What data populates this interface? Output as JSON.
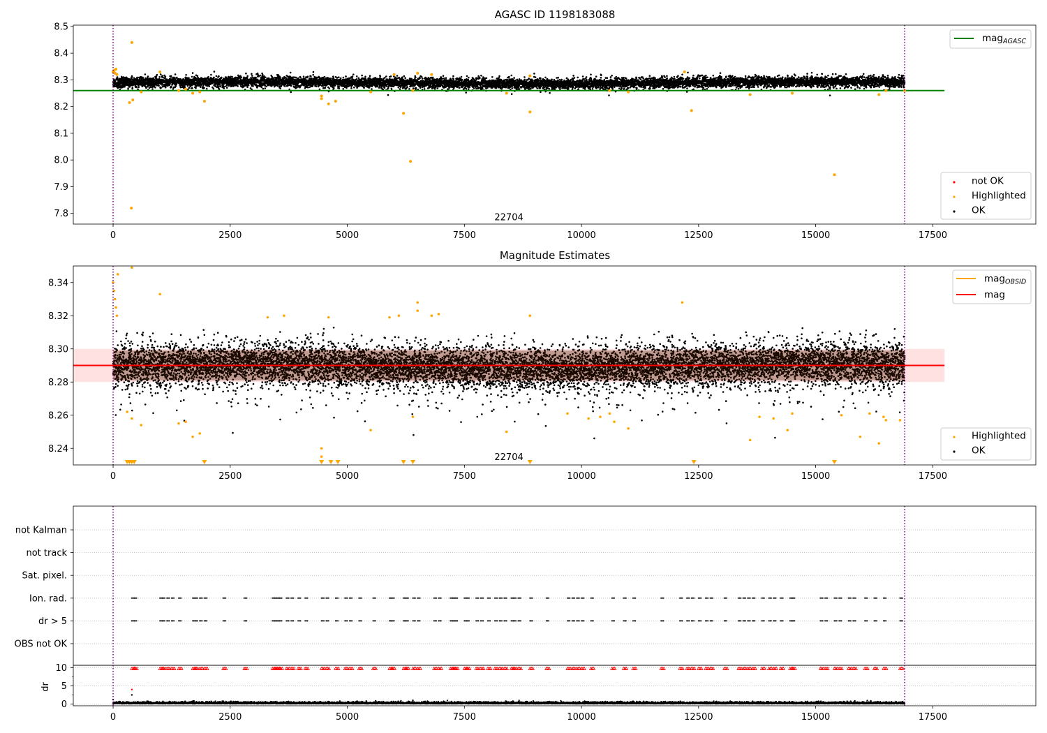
{
  "chart_data": [
    {
      "type": "scatter",
      "title": "AGASC ID 1198183088",
      "xlim": [
        -850,
        19700
      ],
      "ylim": [
        7.76,
        8.505
      ],
      "xticks": [
        "0",
        "2500",
        "5000",
        "7500",
        "10000",
        "12500",
        "15000",
        "17500"
      ],
      "yticks": [
        "7.8",
        "7.9",
        "8.0",
        "8.1",
        "8.2",
        "8.3",
        "8.4",
        "8.5"
      ],
      "obsid_boundaries": [
        0,
        16900
      ],
      "annotation": {
        "text": "22704",
        "x": 8450,
        "y": 7.775
      },
      "mag_agasc": {
        "value": 8.26,
        "x_range": [
          -850,
          17750
        ],
        "color": "#008000"
      },
      "legend_lines": [
        {
          "name": "mag",
          "sub": "AGASC",
          "color": "#008000"
        }
      ],
      "legend_points": [
        {
          "name": "not OK",
          "color": "#ff0000"
        },
        {
          "name": "Highlighted",
          "color": "#ffa500"
        },
        {
          "name": "OK",
          "color": "#000000"
        }
      ],
      "ok_band": {
        "center": 8.29,
        "spread": 0.012,
        "x_range": [
          0,
          16900
        ]
      },
      "highlighted": [
        [
          0,
          8.33
        ],
        [
          20,
          8.335
        ],
        [
          40,
          8.325
        ],
        [
          60,
          8.34
        ],
        [
          80,
          8.32
        ],
        [
          400,
          8.44
        ],
        [
          390,
          7.82
        ],
        [
          350,
          8.215
        ],
        [
          420,
          8.225
        ],
        [
          600,
          8.255
        ],
        [
          1000,
          8.33
        ],
        [
          1400,
          8.26
        ],
        [
          1550,
          8.265
        ],
        [
          1700,
          8.25
        ],
        [
          1850,
          8.255
        ],
        [
          1950,
          8.22
        ],
        [
          4450,
          8.23
        ],
        [
          4450,
          8.24
        ],
        [
          4600,
          8.21
        ],
        [
          4750,
          8.22
        ],
        [
          5500,
          8.255
        ],
        [
          6200,
          8.175
        ],
        [
          6350,
          7.995
        ],
        [
          6500,
          8.325
        ],
        [
          6400,
          8.26
        ],
        [
          6000,
          8.32
        ],
        [
          6800,
          8.32
        ],
        [
          8400,
          8.25
        ],
        [
          8900,
          8.18
        ],
        [
          8900,
          8.315
        ],
        [
          10600,
          8.26
        ],
        [
          11000,
          8.255
        ],
        [
          12200,
          8.33
        ],
        [
          12350,
          8.185
        ],
        [
          13600,
          8.245
        ],
        [
          14500,
          8.25
        ],
        [
          15400,
          7.945
        ],
        [
          16350,
          8.245
        ],
        [
          16500,
          8.26
        ],
        [
          16900,
          8.26
        ]
      ]
    },
    {
      "type": "scatter",
      "title": "Magnitude Estimates",
      "xlim": [
        -850,
        19700
      ],
      "ylim": [
        8.23,
        8.35
      ],
      "xticks": [
        "0",
        "2500",
        "5000",
        "7500",
        "10000",
        "12500",
        "15000",
        "17500"
      ],
      "yticks": [
        "8.24",
        "8.26",
        "8.28",
        "8.30",
        "8.32",
        "8.34"
      ],
      "obsid_boundaries": [
        0,
        16900
      ],
      "annotation": {
        "text": "22704",
        "x": 8450,
        "y": 8.233
      },
      "mag": {
        "value": 8.29,
        "band": [
          8.28,
          8.3
        ],
        "x_range": [
          -850,
          17750
        ],
        "color": "#ff0000"
      },
      "mag_obsid": {
        "value": 8.29,
        "color": "#ffa500"
      },
      "legend_lines": [
        {
          "name": "mag",
          "sub": "OBSID",
          "color": "#ffa500"
        },
        {
          "name": "mag",
          "sub": "",
          "color": "#ff0000"
        }
      ],
      "legend_points": [
        {
          "name": "Highlighted",
          "color": "#ffa500"
        },
        {
          "name": "OK",
          "color": "#000000"
        }
      ],
      "highlighted": [
        [
          0,
          8.34
        ],
        [
          20,
          8.335
        ],
        [
          40,
          8.33
        ],
        [
          60,
          8.325
        ],
        [
          80,
          8.32
        ],
        [
          100,
          8.345
        ],
        [
          400,
          8.349
        ],
        [
          300,
          8.262
        ],
        [
          400,
          8.258
        ],
        [
          600,
          8.254
        ],
        [
          1000,
          8.333
        ],
        [
          1400,
          8.255
        ],
        [
          1550,
          8.256
        ],
        [
          1700,
          8.247
        ],
        [
          1850,
          8.249
        ],
        [
          3300,
          8.319
        ],
        [
          3650,
          8.32
        ],
        [
          4450,
          8.24
        ],
        [
          4450,
          8.235
        ],
        [
          4600,
          8.319
        ],
        [
          5500,
          8.251
        ],
        [
          5900,
          8.319
        ],
        [
          6100,
          8.32
        ],
        [
          6400,
          8.259
        ],
        [
          6500,
          8.328
        ],
        [
          6500,
          8.323
        ],
        [
          6800,
          8.32
        ],
        [
          6950,
          8.321
        ],
        [
          8400,
          8.25
        ],
        [
          8900,
          8.32
        ],
        [
          9700,
          8.261
        ],
        [
          10150,
          8.258
        ],
        [
          10400,
          8.259
        ],
        [
          10600,
          8.261
        ],
        [
          10700,
          8.256
        ],
        [
          11000,
          8.252
        ],
        [
          12150,
          8.328
        ],
        [
          13600,
          8.245
        ],
        [
          13800,
          8.259
        ],
        [
          14100,
          8.258
        ],
        [
          14400,
          8.251
        ],
        [
          14500,
          8.261
        ],
        [
          15550,
          8.26
        ],
        [
          15950,
          8.247
        ],
        [
          16150,
          8.261
        ],
        [
          16350,
          8.243
        ],
        [
          16450,
          8.259
        ],
        [
          16500,
          8.257
        ],
        [
          16800,
          8.257
        ]
      ],
      "below_limit_markers": [
        300,
        350,
        400,
        450,
        1950,
        4450,
        4650,
        4800,
        6200,
        6400,
        8900,
        12400,
        15400
      ]
    },
    {
      "type": "scatter",
      "title": "",
      "xlim": [
        -850,
        19700
      ],
      "categories": [
        "not Kalman",
        "not track",
        "Sat. pixel.",
        "Ion. rad.",
        "dr > 5",
        "OBS not OK"
      ],
      "flag_times": [
        400,
        450,
        1000,
        1050,
        1150,
        1250,
        1400,
        1700,
        1750,
        1850,
        1950,
        2350,
        2800,
        3400,
        3450,
        3500,
        3550,
        3700,
        3800,
        3950,
        4100,
        4450,
        4550,
        4750,
        4950,
        5050,
        5250,
        5550,
        5900,
        5950,
        6200,
        6250,
        6400,
        6500,
        6850,
        6950,
        7200,
        7250,
        7300,
        7500,
        7550,
        7750,
        7850,
        8000,
        8150,
        8250,
        8350,
        8500,
        8550,
        8650,
        8900,
        9250,
        9700,
        9800,
        9900,
        10000,
        10200,
        10650,
        10900,
        11100,
        11700,
        12100,
        12250,
        12350,
        12500,
        12650,
        12750,
        13050,
        13350,
        13450,
        13550,
        13650,
        13850,
        14000,
        14100,
        14250,
        14450,
        14500,
        15100,
        15200,
        15400,
        15500,
        15700,
        15800,
        16050,
        16250,
        16450,
        16800
      ],
      "xticks": [
        "0",
        "2500",
        "5000",
        "7500",
        "10000",
        "12500",
        "15000",
        "17500"
      ],
      "obsid_boundaries": [
        0,
        16900
      ]
    },
    {
      "type": "scatter",
      "title": "",
      "xlim": [
        -850,
        19700
      ],
      "ylim": [
        -0.5,
        10.7
      ],
      "ylabel": "dr",
      "yticks": [
        "0",
        "5",
        "10"
      ],
      "xticks": [
        "0",
        "2500",
        "5000",
        "7500",
        "10000",
        "12500",
        "15000",
        "17500"
      ],
      "obsid_boundaries": [
        0,
        16900
      ],
      "dr_baseline": 0.3,
      "dr_clipped_value": 9.8,
      "dr_extra": [
        [
          400,
          4
        ],
        [
          400,
          2.5
        ],
        [
          0,
          1.2
        ],
        [
          6400,
          1
        ]
      ]
    }
  ]
}
